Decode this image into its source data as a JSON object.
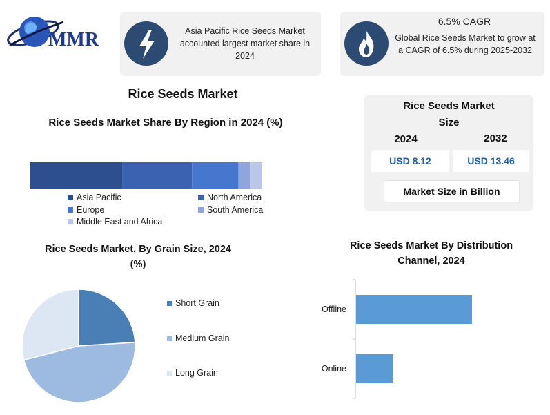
{
  "logo": {
    "text": "MMR"
  },
  "card_left": {
    "text": "Asia Pacific Rice Seeds Market accounted largest market share in 2024"
  },
  "card_right": {
    "title": "6.5% CAGR",
    "text": "Global Rice Seeds Market to grow at a CAGR of 6.5% during 2025-2032"
  },
  "page_title": "Rice Seeds Market",
  "market_size": {
    "title": "Rice Seeds Market Size",
    "year1": "2024",
    "year2": "2032",
    "value1": "USD 8.12",
    "value2": "USD 13.46",
    "footer": "Market Size in Billion"
  },
  "chart_data": [
    {
      "type": "bar",
      "orientation": "horizontal-stacked",
      "title": "Rice Seeds Market Share By Region in 2024 (%)",
      "series": [
        {
          "name": "Asia Pacific",
          "value": 40,
          "color": "#2e4f8f"
        },
        {
          "name": "North America",
          "value": 30,
          "color": "#3a62b0"
        },
        {
          "name": "Europe",
          "value": 20,
          "color": "#4677cf"
        },
        {
          "name": "South America",
          "value": 5,
          "color": "#8fa5de"
        },
        {
          "name": "Middle East and Africa",
          "value": 5,
          "color": "#bac7ea"
        }
      ],
      "legend": [
        {
          "label": "Asia Pacific",
          "color": "#2e4f8f"
        },
        {
          "label": "North America",
          "color": "#3a62b0"
        },
        {
          "label": "Europe",
          "color": "#4677cf"
        },
        {
          "label": "South America",
          "color": "#8fa5de"
        },
        {
          "label": "Middle East and Africa",
          "color": "#bac7ea"
        }
      ]
    },
    {
      "type": "pie",
      "title": "Rice Seeds Market, By Grain Size, 2024 (%)",
      "slices": [
        {
          "label": "Short Grain",
          "value": 24,
          "color": "#4a7fb5"
        },
        {
          "label": "Medium Grain",
          "value": 47,
          "color": "#9dbbe0"
        },
        {
          "label": "Long Grain",
          "value": 29,
          "color": "#dde6f3"
        }
      ]
    },
    {
      "type": "bar",
      "orientation": "horizontal",
      "title": "Rice Seeds Market By Distribution Channel, 2024",
      "categories": [
        "Offline",
        "Online"
      ],
      "values": [
        100,
        32
      ],
      "color": "#5b9bd5"
    }
  ]
}
